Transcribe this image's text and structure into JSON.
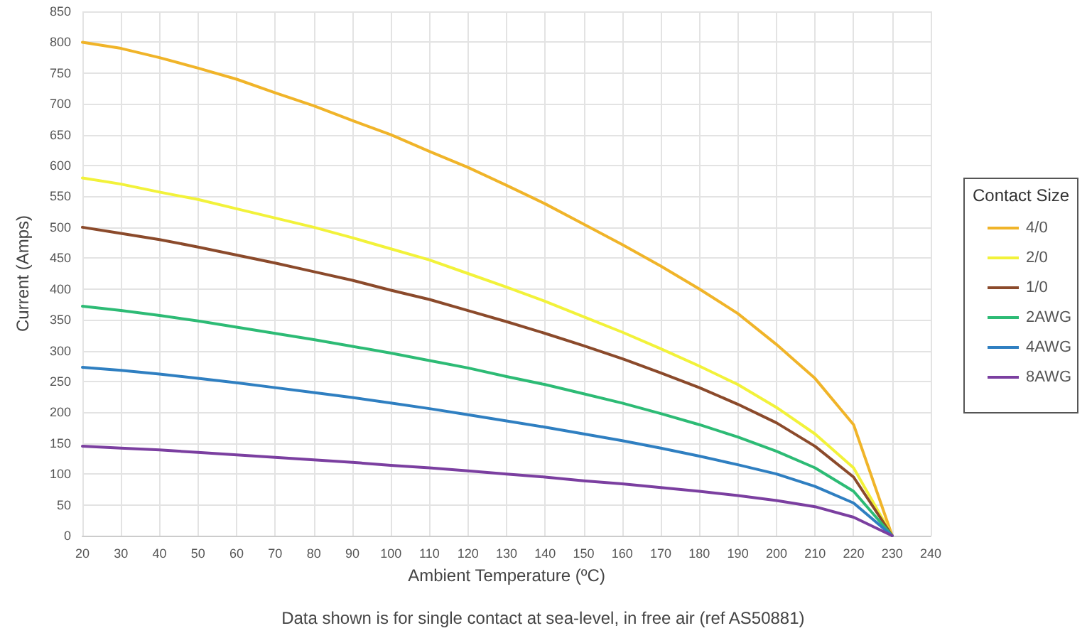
{
  "chart_data": {
    "type": "line",
    "xlabel": "Ambient Temperature (ºC)",
    "ylabel": "Current (Amps)",
    "legend_title": "Contact Size",
    "annotations": [
      "Data shown is for single contact at sea-level, in free air (ref AS50881)"
    ],
    "x": [
      20,
      30,
      40,
      50,
      60,
      70,
      80,
      90,
      100,
      110,
      120,
      130,
      140,
      150,
      160,
      170,
      180,
      190,
      200,
      210,
      220,
      230
    ],
    "series": [
      {
        "name": "4/0",
        "color": "#f0b429",
        "values": [
          800,
          790,
          775,
          758,
          740,
          718,
          697,
          673,
          650,
          623,
          597,
          568,
          538,
          505,
          472,
          437,
          400,
          360,
          310,
          255,
          180,
          0
        ]
      },
      {
        "name": "2/0",
        "color": "#f2f23a",
        "values": [
          580,
          570,
          557,
          545,
          530,
          515,
          500,
          483,
          465,
          447,
          425,
          403,
          380,
          355,
          330,
          303,
          275,
          245,
          208,
          165,
          110,
          0
        ]
      },
      {
        "name": "1/0",
        "color": "#8b4a2b",
        "values": [
          500,
          490,
          480,
          468,
          455,
          442,
          428,
          414,
          398,
          383,
          365,
          347,
          328,
          308,
          287,
          264,
          240,
          213,
          183,
          145,
          95,
          0
        ]
      },
      {
        "name": "2AWG",
        "color": "#2dbb75",
        "values": [
          372,
          365,
          357,
          348,
          338,
          328,
          318,
          307,
          296,
          284,
          272,
          258,
          245,
          230,
          215,
          198,
          180,
          160,
          137,
          110,
          72,
          0
        ]
      },
      {
        "name": "4AWG",
        "color": "#2f7fc1",
        "values": [
          273,
          268,
          262,
          255,
          248,
          240,
          232,
          224,
          215,
          206,
          196,
          186,
          176,
          165,
          154,
          142,
          129,
          115,
          100,
          80,
          53,
          0
        ]
      },
      {
        "name": "8AWG",
        "color": "#7b3fa0",
        "values": [
          145,
          142,
          139,
          135,
          131,
          127,
          123,
          119,
          114,
          110,
          105,
          100,
          95,
          89,
          84,
          78,
          72,
          65,
          57,
          47,
          30,
          0
        ]
      }
    ],
    "xlim": [
      20,
      240
    ],
    "xticks": [
      20,
      30,
      40,
      50,
      60,
      70,
      80,
      90,
      100,
      110,
      120,
      130,
      140,
      150,
      160,
      170,
      180,
      190,
      200,
      210,
      220,
      230,
      240
    ],
    "ylim": [
      0,
      850
    ],
    "yticks": [
      0,
      50,
      100,
      150,
      200,
      250,
      300,
      350,
      400,
      450,
      500,
      550,
      600,
      650,
      700,
      750,
      800,
      850
    ],
    "grid": true,
    "legend": "right",
    "marker": "none",
    "line_style": "solid"
  }
}
